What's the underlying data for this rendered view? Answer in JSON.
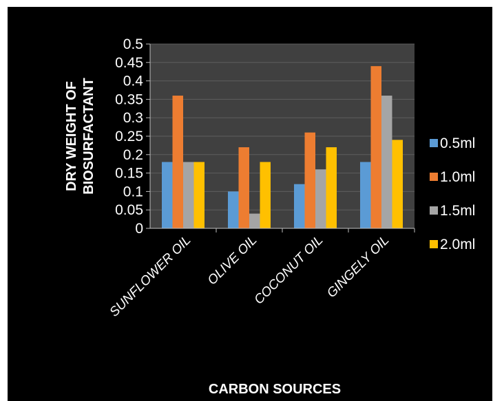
{
  "chart_data": {
    "type": "bar",
    "categories": [
      "SUNFLOWER OIL",
      "OLIVE OIL",
      "COCONUT OIL",
      "GINGELY OIL"
    ],
    "series": [
      {
        "name": "0.5ml",
        "values": [
          0.18,
          0.1,
          0.12,
          0.18
        ],
        "color": "#5b9bd5"
      },
      {
        "name": "1.0ml",
        "values": [
          0.36,
          0.22,
          0.26,
          0.44
        ],
        "color": "#ed7d31"
      },
      {
        "name": "1.5ml",
        "values": [
          0.18,
          0.04,
          0.16,
          0.36
        ],
        "color": "#a5a5a5"
      },
      {
        "name": "2.0ml",
        "values": [
          0.18,
          0.18,
          0.22,
          0.24
        ],
        "color": "#ffc000"
      }
    ],
    "xlabel": "CARBON SOURCES",
    "ylabel_lines": [
      "DRY WEIGHT OF",
      "BIOSURFACTANT"
    ],
    "ylim": [
      0,
      0.5
    ],
    "yticks": [
      "0",
      "0.05",
      "0.1",
      "0.15",
      "0.2",
      "0.25",
      "0.3",
      "0.35",
      "0.4",
      "0.45",
      "0.5"
    ],
    "grid": true,
    "legend_position": "right",
    "background_color": "#000000",
    "plot_area_color": "#404040",
    "gridline_color": "#5e5e5e",
    "text_color": "#ffffff"
  }
}
